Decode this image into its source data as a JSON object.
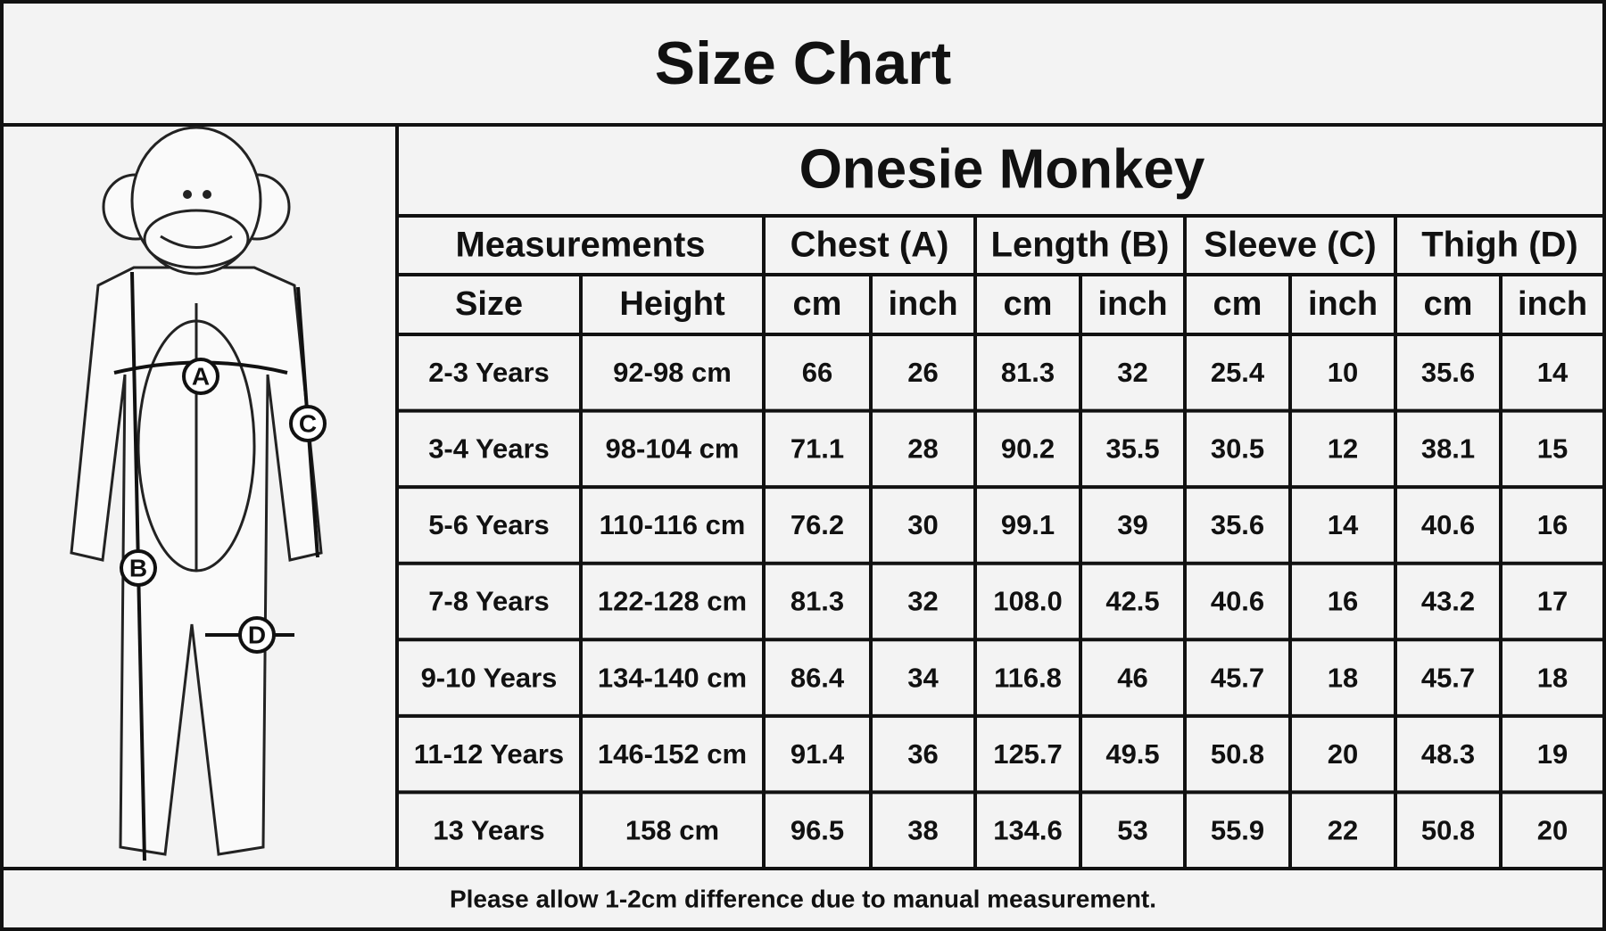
{
  "title": "Size Chart",
  "product": "Onesie Monkey",
  "diagram_labels": [
    "A",
    "B",
    "C",
    "D"
  ],
  "table": {
    "groups": [
      "Measurements",
      "Chest (A)",
      "Length (B)",
      "Sleeve (C)",
      "Thigh (D)"
    ],
    "columns": [
      "Size",
      "Height",
      "cm",
      "inch",
      "cm",
      "inch",
      "cm",
      "inch",
      "cm",
      "inch"
    ],
    "rows": [
      [
        "2-3 Years",
        "92-98 cm",
        "66",
        "26",
        "81.3",
        "32",
        "25.4",
        "10",
        "35.6",
        "14"
      ],
      [
        "3-4 Years",
        "98-104 cm",
        "71.1",
        "28",
        "90.2",
        "35.5",
        "30.5",
        "12",
        "38.1",
        "15"
      ],
      [
        "5-6 Years",
        "110-116 cm",
        "76.2",
        "30",
        "99.1",
        "39",
        "35.6",
        "14",
        "40.6",
        "16"
      ],
      [
        "7-8 Years",
        "122-128 cm",
        "81.3",
        "32",
        "108.0",
        "42.5",
        "40.6",
        "16",
        "43.2",
        "17"
      ],
      [
        "9-10 Years",
        "134-140 cm",
        "86.4",
        "34",
        "116.8",
        "46",
        "45.7",
        "18",
        "45.7",
        "18"
      ],
      [
        "11-12 Years",
        "146-152 cm",
        "91.4",
        "36",
        "125.7",
        "49.5",
        "50.8",
        "20",
        "48.3",
        "19"
      ],
      [
        "13 Years",
        "158 cm",
        "96.5",
        "38",
        "134.6",
        "53",
        "55.9",
        "22",
        "50.8",
        "20"
      ]
    ]
  },
  "note": "Please allow 1-2cm difference due to manual measurement."
}
